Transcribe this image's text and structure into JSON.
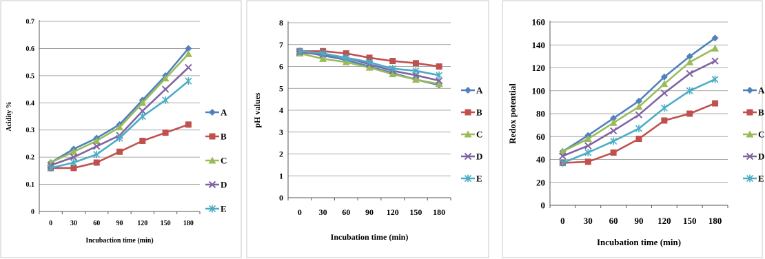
{
  "series_styles": [
    {
      "color": "#4F81BD",
      "marker": "diamond"
    },
    {
      "color": "#C0504D",
      "marker": "square"
    },
    {
      "color": "#9BBB59",
      "marker": "triangle"
    },
    {
      "color": "#8064A2",
      "marker": "x"
    },
    {
      "color": "#4BACC6",
      "marker": "star"
    }
  ],
  "chart_data": [
    {
      "type": "line",
      "title": "",
      "xlabel": "Incubaction time (min)",
      "ylabel": "Acidity %",
      "x": [
        "0",
        "30",
        "60",
        "90",
        "120",
        "150",
        "180"
      ],
      "ylim": [
        0,
        0.7
      ],
      "yticks": [
        "0",
        "0.1",
        "0.2",
        "0.3",
        "0.4",
        "0.5",
        "0.6",
        "0.7"
      ],
      "grid": true,
      "legend": "right",
      "series": [
        {
          "name": "A",
          "values": [
            0.18,
            0.23,
            0.27,
            0.32,
            0.41,
            0.5,
            0.6
          ]
        },
        {
          "name": "B",
          "values": [
            0.16,
            0.16,
            0.18,
            0.22,
            0.26,
            0.29,
            0.32
          ]
        },
        {
          "name": "C",
          "values": [
            0.18,
            0.22,
            0.26,
            0.31,
            0.4,
            0.49,
            0.58
          ]
        },
        {
          "name": "D",
          "values": [
            0.17,
            0.2,
            0.24,
            0.28,
            0.37,
            0.45,
            0.53
          ]
        },
        {
          "name": "E",
          "values": [
            0.16,
            0.18,
            0.21,
            0.27,
            0.35,
            0.41,
            0.48
          ]
        }
      ]
    },
    {
      "type": "line",
      "title": "",
      "xlabel": "Incubation time (min)",
      "ylabel": "pH values",
      "x": [
        "0",
        "30",
        "60",
        "90",
        "120",
        "150",
        "180"
      ],
      "ylim": [
        0,
        8
      ],
      "yticks": [
        "0",
        "1",
        "2",
        "3",
        "4",
        "5",
        "6",
        "7",
        "8"
      ],
      "grid": true,
      "legend": "right",
      "series": [
        {
          "name": "A",
          "values": [
            6.7,
            6.5,
            6.3,
            6.0,
            5.7,
            5.4,
            5.15
          ]
        },
        {
          "name": "B",
          "values": [
            6.7,
            6.7,
            6.6,
            6.4,
            6.25,
            6.15,
            6.0
          ]
        },
        {
          "name": "C",
          "values": [
            6.6,
            6.35,
            6.2,
            5.95,
            5.65,
            5.4,
            5.2
          ]
        },
        {
          "name": "D",
          "values": [
            6.65,
            6.55,
            6.4,
            6.1,
            5.8,
            5.6,
            5.35
          ]
        },
        {
          "name": "E",
          "values": [
            6.7,
            6.6,
            6.4,
            6.2,
            5.9,
            5.8,
            5.6
          ]
        }
      ]
    },
    {
      "type": "line",
      "title": "",
      "xlabel": "Incubation time (min)",
      "ylabel": "Redox potential",
      "x": [
        "0",
        "30",
        "60",
        "90",
        "120",
        "150",
        "180"
      ],
      "ylim": [
        0,
        160
      ],
      "yticks": [
        "0",
        "20",
        "40",
        "60",
        "80",
        "100",
        "120",
        "140",
        "160"
      ],
      "grid": true,
      "legend": "right",
      "series": [
        {
          "name": "A",
          "values": [
            47,
            61,
            76,
            91,
            112,
            130,
            146
          ]
        },
        {
          "name": "B",
          "values": [
            37,
            38,
            46,
            58,
            74,
            80,
            89
          ]
        },
        {
          "name": "C",
          "values": [
            47,
            58,
            72,
            86,
            106,
            125,
            137
          ]
        },
        {
          "name": "D",
          "values": [
            43,
            52,
            65,
            79,
            98,
            115,
            126
          ]
        },
        {
          "name": "E",
          "values": [
            37,
            46,
            56,
            67,
            85,
            100,
            110
          ]
        }
      ]
    }
  ]
}
